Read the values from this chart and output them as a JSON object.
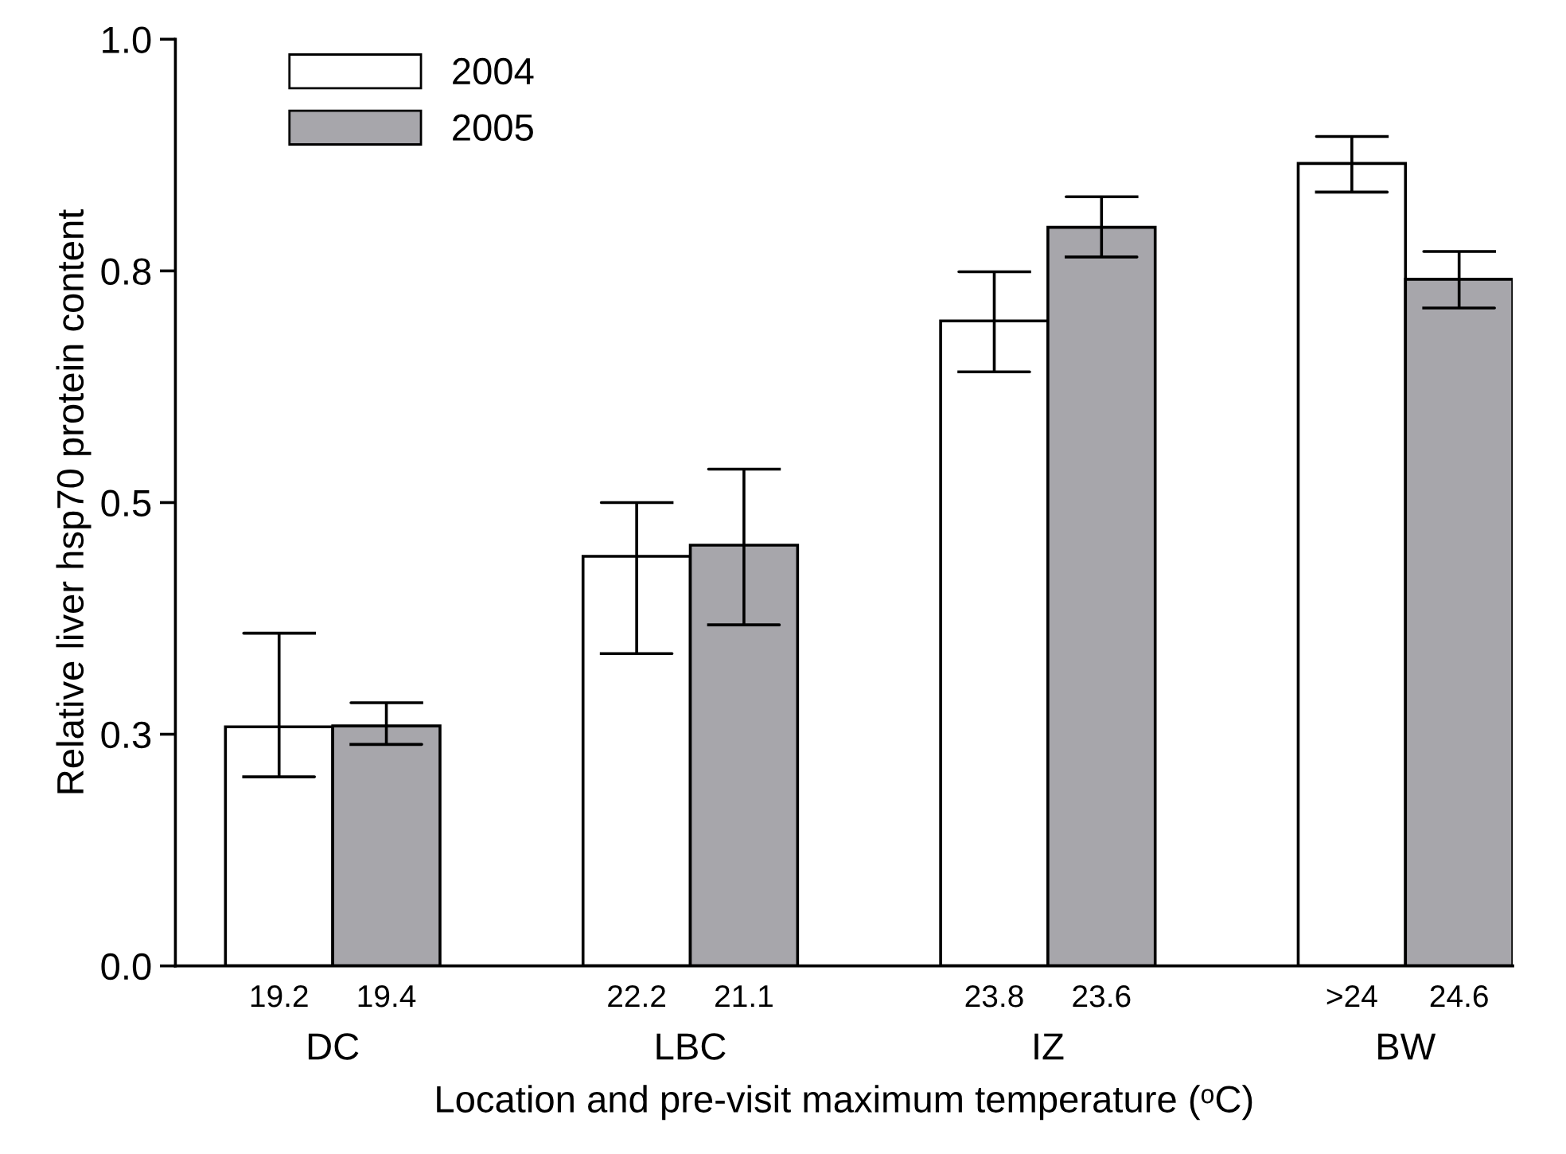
{
  "chart_data": {
    "type": "bar",
    "ylabel": "Relative liver hsp70 protein content",
    "xlabel": "Location and pre-visit maximum temperature (ᵒC)",
    "categories": [
      "DC",
      "LBC",
      "IZ",
      "BW"
    ],
    "series": [
      {
        "name": "2004",
        "color": "#ffffff",
        "values": [
          0.258,
          0.442,
          0.696,
          0.866
        ],
        "errors": [
          [
            0.204,
            0.359
          ],
          [
            0.337,
            0.5
          ],
          [
            0.641,
            0.749
          ],
          [
            0.835,
            0.895
          ]
        ]
      },
      {
        "name": "2005",
        "color": "#a7a6ab",
        "values": [
          0.259,
          0.454,
          0.797,
          0.741
        ],
        "errors": [
          [
            0.239,
            0.284
          ],
          [
            0.368,
            0.536
          ],
          [
            0.765,
            0.83
          ],
          [
            0.71,
            0.771
          ]
        ]
      }
    ],
    "annotations": [
      "19.2",
      "19.4",
      "22.2",
      "21.1",
      "23.8",
      "23.6",
      ">24",
      "24.6"
    ],
    "ylim": [
      0,
      1.0
    ],
    "yticks": [
      {
        "value": 0,
        "label": "0.0"
      },
      {
        "value": 0.25,
        "label": "0.3"
      },
      {
        "value": 0.5,
        "label": "0.5"
      },
      {
        "value": 0.75,
        "label": "0.8"
      },
      {
        "value": 1.0,
        "label": "1.0"
      }
    ],
    "legend": "top left",
    "grid": false
  }
}
